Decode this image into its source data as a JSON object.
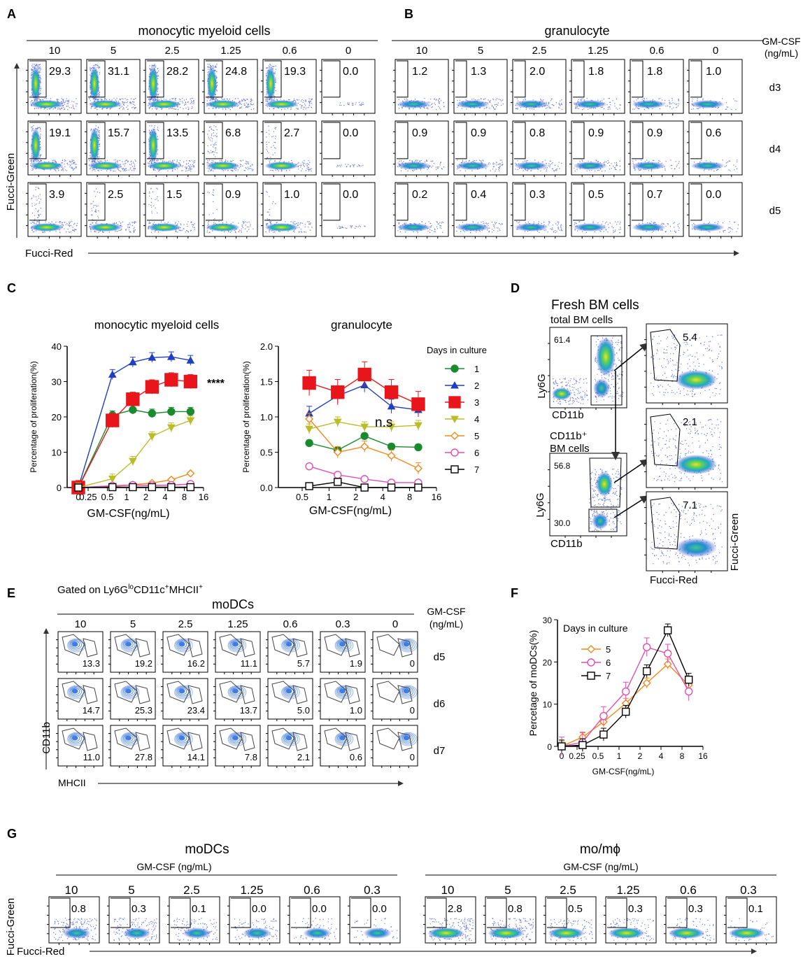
{
  "panel_letters": [
    "A",
    "B",
    "C",
    "D",
    "E",
    "F",
    "G"
  ],
  "axis_titles": {
    "fucci_green": "Fucci-Green",
    "fucci_red": "Fucci-Red",
    "ly6g": "Ly6G",
    "cd11b": "CD11b",
    "mhcii": "MHCII"
  },
  "gmcsf_label": "GM-CSF",
  "gmcsf_unit": "(ng/mL)",
  "gmcsf_full": "GM-CSF (ng/mL)",
  "panel_a": {
    "title": "monocytic myeloid cells",
    "concentrations": [
      "10",
      "5",
      "2.5",
      "1.25",
      "0.6",
      "0"
    ],
    "values": [
      [
        "29.3",
        "31.1",
        "28.2",
        "24.8",
        "19.3",
        "0.0"
      ],
      [
        "19.1",
        "15.7",
        "13.5",
        "6.8",
        "2.7",
        "0.0"
      ],
      [
        "3.9",
        "2.5",
        "1.5",
        "0.9",
        "1.0",
        "0.0"
      ]
    ]
  },
  "panel_b": {
    "title": "granulocyte",
    "concentrations": [
      "10",
      "5",
      "2.5",
      "1.25",
      "0.6",
      "0"
    ],
    "days": [
      "d3",
      "d4",
      "d5"
    ],
    "values": [
      [
        "1.2",
        "1.3",
        "2.0",
        "1.8",
        "1.8",
        "1.0"
      ],
      [
        "0.9",
        "0.9",
        "0.8",
        "0.9",
        "0.9",
        "0.6"
      ],
      [
        "0.2",
        "0.4",
        "0.3",
        "0.5",
        "0.7",
        "0.0"
      ]
    ]
  },
  "panel_d": {
    "title": "Fresh BM cells",
    "total_label": "total BM cells",
    "cd11b_pos_label_1": "CD11b⁺",
    "cd11b_pos_label_2": "BM cells",
    "gate_total": "61.4",
    "gate_hi": "56.8",
    "gate_lo": "30.0",
    "values": [
      "5.4",
      "2.1",
      "7.1"
    ]
  },
  "panel_e": {
    "gated_on": "Gated on Ly6G",
    "gated_sup_1": "lo",
    "gated_mid": "CD11c",
    "gated_sup_2": "+",
    "gated_end": "MHCII",
    "gated_sup_3": "+",
    "title": "moDCs",
    "concentrations": [
      "10",
      "5",
      "2.5",
      "1.25",
      "0.6",
      "0.3",
      "0"
    ],
    "days": [
      "d5",
      "d6",
      "d7"
    ],
    "values": [
      [
        "13.3",
        "19.2",
        "16.2",
        "11.1",
        "5.7",
        "1.9",
        "0"
      ],
      [
        "14.7",
        "25.3",
        "23.4",
        "13.7",
        "5.0",
        "1.0",
        "0"
      ],
      [
        "11.0",
        "27.8",
        "14.1",
        "7.8",
        "2.1",
        "0.6",
        "0"
      ]
    ]
  },
  "panel_g": {
    "modc_title": "moDCs",
    "momf_title": "mo/mϕ",
    "concentrations": [
      "10",
      "5",
      "2.5",
      "1.25",
      "0.6",
      "0.3"
    ],
    "modc_values": [
      "0.8",
      "0.3",
      "0.1",
      "0.0",
      "0.0",
      "0.0"
    ],
    "momf_values": [
      "2.8",
      "0.8",
      "0.5",
      "0.3",
      "0.3",
      "0.1"
    ]
  },
  "significance": {
    "mono": "****",
    "gran": "n.s"
  },
  "chart_data": [
    {
      "type": "line",
      "title": "monocytic myeloid cells",
      "xlabel": "GM-CSF(ng/mL)",
      "ylabel": "Percentage of proliferation(%)",
      "x_scale": "log2 with zero",
      "xticks": [
        "0",
        "0.25",
        "0.5",
        "1",
        "2",
        "4",
        "8",
        "16"
      ],
      "yticks": [
        "0",
        "10",
        "20",
        "30",
        "40"
      ],
      "ylim": [
        0,
        40
      ],
      "x": [
        0,
        0.6,
        1.25,
        2.5,
        5,
        10
      ],
      "series": [
        {
          "name": "1",
          "color": "#1a8a2e",
          "marker": "circle",
          "values": [
            0,
            20.5,
            22,
            21,
            21.5,
            21.5
          ]
        },
        {
          "name": "2",
          "color": "#1f3fbf",
          "marker": "triangle",
          "values": [
            0,
            32,
            35.5,
            36.8,
            37,
            36
          ]
        },
        {
          "name": "3",
          "color": "#e8161a",
          "marker": "square",
          "values": [
            0,
            19,
            25,
            28.5,
            30.5,
            30
          ]
        },
        {
          "name": "4",
          "color": "#b9bd2a",
          "marker": "triangle-down",
          "values": [
            0,
            2.5,
            7.5,
            14.5,
            17,
            19
          ]
        },
        {
          "name": "5",
          "color": "#f28a1d",
          "marker": "diamond",
          "values": [
            0,
            0.3,
            0.8,
            1.3,
            2.2,
            4
          ]
        },
        {
          "name": "6",
          "color": "#e24fb0",
          "marker": "circle-open",
          "values": [
            0,
            0.5,
            0.7,
            0.6,
            0.7,
            1
          ]
        },
        {
          "name": "7",
          "color": "#000000",
          "marker": "square-open",
          "values": [
            0,
            0.1,
            0.1,
            0.1,
            0.1,
            0.1
          ]
        }
      ]
    },
    {
      "type": "line",
      "title": "granulocyte",
      "xlabel": "GM-CSF(ng/mL)",
      "ylabel": "Percentage of proliferation(%)",
      "legend_title": "Days in culture",
      "x_scale": "log2",
      "xticks": [
        "0.5",
        "1",
        "2",
        "4",
        "8",
        "16"
      ],
      "yticks": [
        "0.0",
        "0.5",
        "1.0",
        "1.5",
        "2.0"
      ],
      "ylim": [
        0,
        2
      ],
      "x": [
        0.6,
        1.25,
        2.5,
        5,
        10
      ],
      "series": [
        {
          "name": "1",
          "color": "#1a8a2e",
          "marker": "circle",
          "values": [
            0.63,
            0.53,
            0.73,
            0.58,
            0.57
          ]
        },
        {
          "name": "2",
          "color": "#1f3fbf",
          "marker": "triangle",
          "values": [
            1.05,
            1.3,
            1.45,
            1.15,
            1.1
          ]
        },
        {
          "name": "3",
          "color": "#e8161a",
          "marker": "square",
          "values": [
            1.48,
            1.35,
            1.6,
            1.35,
            1.18
          ]
        },
        {
          "name": "4",
          "color": "#b9bd2a",
          "marker": "triangle-down",
          "values": [
            0.83,
            0.93,
            0.86,
            0.86,
            0.88
          ]
        },
        {
          "name": "5",
          "color": "#f28a1d",
          "marker": "diamond",
          "values": [
            0.97,
            0.5,
            0.58,
            0.45,
            0.27
          ]
        },
        {
          "name": "6",
          "color": "#e24fb0",
          "marker": "circle-open",
          "values": [
            0.3,
            0.18,
            0.12,
            0.07,
            0.07
          ]
        },
        {
          "name": "7",
          "color": "#000000",
          "marker": "square-open",
          "values": [
            0.02,
            0.08,
            0.0,
            0.0,
            0.0
          ]
        }
      ]
    },
    {
      "type": "line",
      "title": "",
      "xlabel": "GM-CSF(ng/mL)",
      "ylabel": "Percetage of moDCs(%)",
      "legend_title": "Days in culture",
      "x_scale": "log2 with zero",
      "xticks": [
        "0",
        "0.25",
        "0.5",
        "1",
        "2",
        "4",
        "8",
        "16"
      ],
      "yticks": [
        "0",
        "10",
        "20",
        "30"
      ],
      "ylim": [
        0,
        30
      ],
      "x": [
        0,
        0.3,
        0.6,
        1.25,
        2.5,
        5,
        10
      ],
      "series": [
        {
          "name": "5",
          "color": "#f28a1d",
          "marker": "diamond",
          "values": [
            0,
            2.2,
            5.8,
            10.2,
            15,
            19.5,
            14.5
          ]
        },
        {
          "name": "6",
          "color": "#e24fb0",
          "marker": "circle-open",
          "values": [
            0,
            1.0,
            7.2,
            13,
            23.5,
            22,
            13
          ]
        },
        {
          "name": "7",
          "color": "#000000",
          "marker": "square-open",
          "values": [
            0,
            0.3,
            2.8,
            8.2,
            17.8,
            27.5,
            15.8
          ]
        }
      ]
    }
  ]
}
